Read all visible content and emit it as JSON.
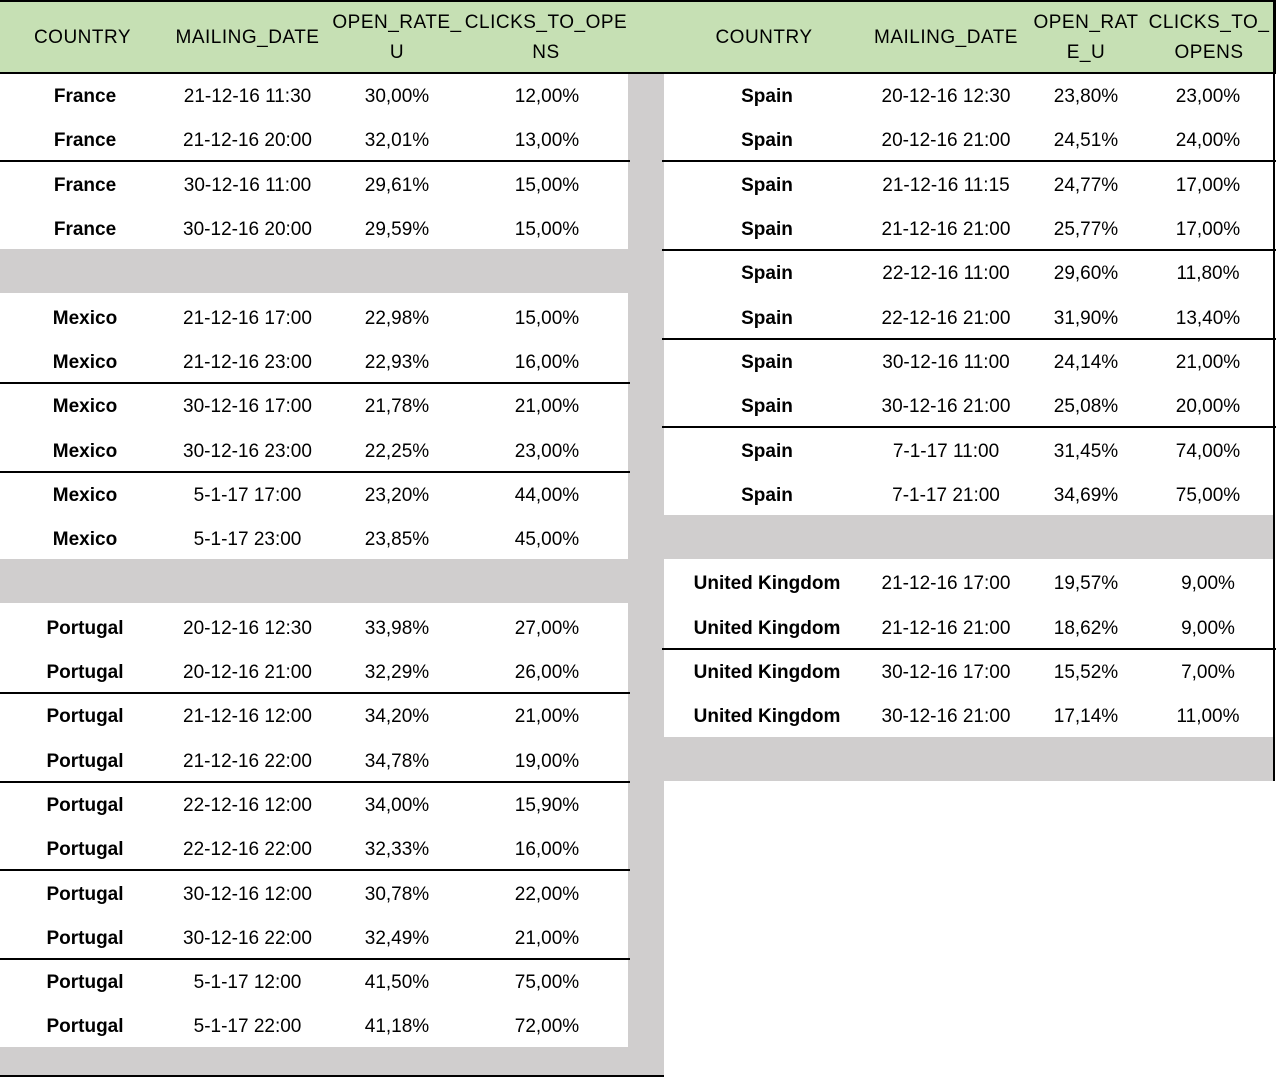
{
  "headers": {
    "left": [
      "COUNTRY",
      "MAILING_DATE",
      "OPEN_RATE_\nU",
      "CLICKS_TO_OPE\nNS"
    ],
    "right": [
      "COUNTRY",
      "MAILING_DATE",
      "OPEN_RAT\nE_U",
      "CLICKS_TO_\nOPENS"
    ]
  },
  "left_rows": [
    {
      "country": "France",
      "date": "21-12-16 11:30",
      "open": "30,00%",
      "clicks": "12,00%"
    },
    {
      "country": "France",
      "date": "21-12-16 20:00",
      "open": "32,01%",
      "clicks": "13,00%"
    },
    {
      "country": "France",
      "date": "30-12-16 11:00",
      "open": "29,61%",
      "clicks": "15,00%"
    },
    {
      "country": "France",
      "date": "30-12-16 20:00",
      "open": "29,59%",
      "clicks": "15,00%"
    },
    {
      "country": "Mexico",
      "date": "21-12-16 17:00",
      "open": "22,98%",
      "clicks": "15,00%"
    },
    {
      "country": "Mexico",
      "date": "21-12-16 23:00",
      "open": "22,93%",
      "clicks": "16,00%"
    },
    {
      "country": "Mexico",
      "date": "30-12-16 17:00",
      "open": "21,78%",
      "clicks": "21,00%"
    },
    {
      "country": "Mexico",
      "date": "30-12-16 23:00",
      "open": "22,25%",
      "clicks": "23,00%"
    },
    {
      "country": "Mexico",
      "date": "5-1-17 17:00",
      "open": "23,20%",
      "clicks": "44,00%"
    },
    {
      "country": "Mexico",
      "date": "5-1-17 23:00",
      "open": "23,85%",
      "clicks": "45,00%"
    },
    {
      "country": "Portugal",
      "date": "20-12-16 12:30",
      "open": "33,98%",
      "clicks": "27,00%"
    },
    {
      "country": "Portugal",
      "date": "20-12-16 21:00",
      "open": "32,29%",
      "clicks": "26,00%"
    },
    {
      "country": "Portugal",
      "date": "21-12-16 12:00",
      "open": "34,20%",
      "clicks": "21,00%"
    },
    {
      "country": "Portugal",
      "date": "21-12-16 22:00",
      "open": "34,78%",
      "clicks": "19,00%"
    },
    {
      "country": "Portugal",
      "date": "22-12-16 12:00",
      "open": "34,00%",
      "clicks": "15,90%"
    },
    {
      "country": "Portugal",
      "date": "22-12-16 22:00",
      "open": "32,33%",
      "clicks": "16,00%"
    },
    {
      "country": "Portugal",
      "date": "30-12-16 12:00",
      "open": "30,78%",
      "clicks": "22,00%"
    },
    {
      "country": "Portugal",
      "date": "30-12-16 22:00",
      "open": "32,49%",
      "clicks": "21,00%"
    },
    {
      "country": "Portugal",
      "date": "5-1-17 12:00",
      "open": "41,50%",
      "clicks": "75,00%"
    },
    {
      "country": "Portugal",
      "date": "5-1-17 22:00",
      "open": "41,18%",
      "clicks": "72,00%"
    }
  ],
  "right_rows": [
    {
      "country": "Spain",
      "date": "20-12-16 12:30",
      "open": "23,80%",
      "clicks": "23,00%"
    },
    {
      "country": "Spain",
      "date": "20-12-16 21:00",
      "open": "24,51%",
      "clicks": "24,00%"
    },
    {
      "country": "Spain",
      "date": "21-12-16 11:15",
      "open": "24,77%",
      "clicks": "17,00%"
    },
    {
      "country": "Spain",
      "date": "21-12-16 21:00",
      "open": "25,77%",
      "clicks": "17,00%"
    },
    {
      "country": "Spain",
      "date": "22-12-16 11:00",
      "open": "29,60%",
      "clicks": "11,80%"
    },
    {
      "country": "Spain",
      "date": "22-12-16 21:00",
      "open": "31,90%",
      "clicks": "13,40%"
    },
    {
      "country": "Spain",
      "date": "30-12-16 11:00",
      "open": "24,14%",
      "clicks": "21,00%"
    },
    {
      "country": "Spain",
      "date": "30-12-16 21:00",
      "open": "25,08%",
      "clicks": "20,00%"
    },
    {
      "country": "Spain",
      "date": "7-1-17 11:00",
      "open": "31,45%",
      "clicks": "74,00%"
    },
    {
      "country": "Spain",
      "date": "7-1-17 21:00",
      "open": "34,69%",
      "clicks": "75,00%"
    },
    {
      "country": "United Kingdom",
      "date": "21-12-16 17:00",
      "open": "19,57%",
      "clicks": "9,00%"
    },
    {
      "country": "United Kingdom",
      "date": "21-12-16 21:00",
      "open": "18,62%",
      "clicks": "9,00%"
    },
    {
      "country": "United Kingdom",
      "date": "30-12-16 17:00",
      "open": "15,52%",
      "clicks": "7,00%"
    },
    {
      "country": "United Kingdom",
      "date": "30-12-16 21:00",
      "open": "17,14%",
      "clicks": "11,00%"
    }
  ]
}
